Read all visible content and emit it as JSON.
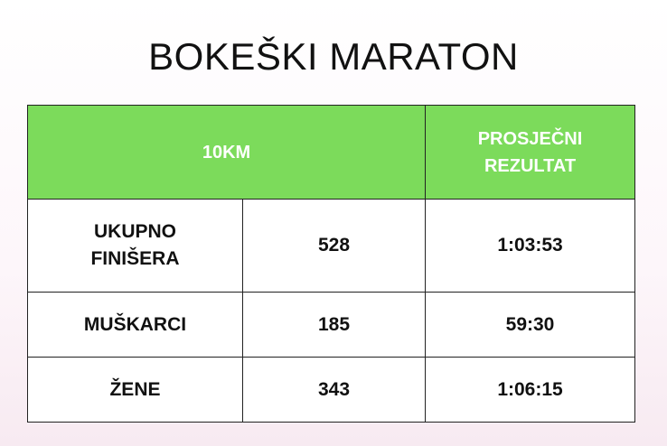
{
  "title": "BOKEŠKI MARATON",
  "table": {
    "header": {
      "distance": "10KM",
      "average_result": "PROSJEČNI REZULTAT"
    },
    "rows": [
      {
        "label": "UKUPNO FINIŠERA",
        "count": "528",
        "average": "1:03:53"
      },
      {
        "label": "MUŠKARCI",
        "count": "185",
        "average": "59:30"
      },
      {
        "label": "ŽENE",
        "count": "343",
        "average": "1:06:15"
      }
    ]
  },
  "colors": {
    "header_background": "#7cdb5b",
    "header_text": "#ffffff",
    "border": "#222222",
    "text": "#111111"
  }
}
